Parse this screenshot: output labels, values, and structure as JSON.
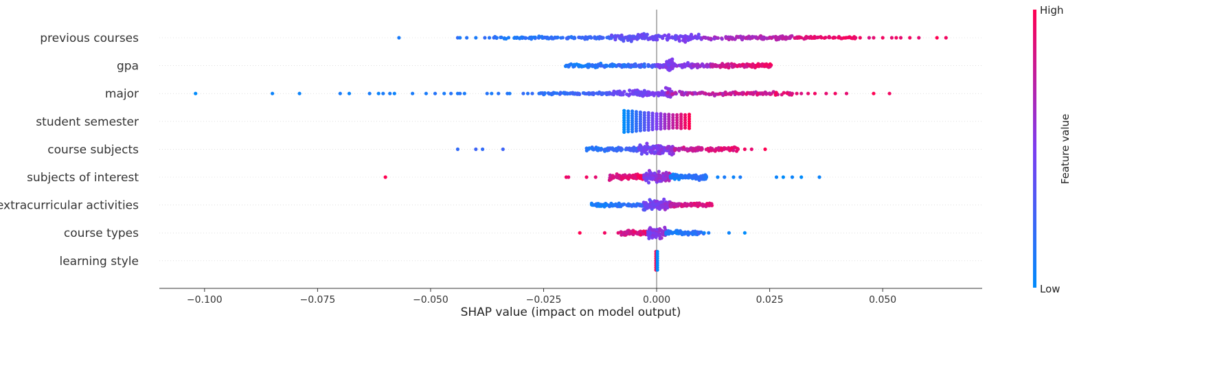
{
  "chart_data": {
    "type": "scatter",
    "subtype": "shap-beeswarm",
    "xlabel": "SHAP value (impact on model output)",
    "xlim": [
      -0.11,
      0.072
    ],
    "x_ticks": [
      -0.1,
      -0.075,
      -0.05,
      -0.025,
      0.0,
      0.025,
      0.05
    ],
    "x_tick_labels": [
      "−0.100",
      "−0.075",
      "−0.050",
      "−0.025",
      "0.000",
      "0.025",
      "0.050"
    ],
    "zero_line": 0.0,
    "colorbar": {
      "title": "Feature value",
      "high_label": "High",
      "low_label": "Low",
      "low_color": "#008bfb",
      "mid_color": "#7c3cf0",
      "high_color": "#ff0051"
    },
    "grid": false,
    "features": [
      {
        "name": "previous courses",
        "outliers": [
          [
            -0.057,
            0.1
          ],
          [
            -0.044,
            0.2
          ],
          [
            -0.0435,
            0.1
          ],
          [
            -0.042,
            0.15
          ],
          [
            -0.04,
            0.1
          ],
          [
            -0.038,
            0.2
          ],
          [
            -0.037,
            0.15
          ],
          [
            -0.036,
            0.2
          ],
          [
            0.044,
            0.9
          ],
          [
            0.045,
            0.95
          ],
          [
            0.047,
            0.85
          ],
          [
            0.048,
            0.9
          ],
          [
            0.05,
            0.95
          ],
          [
            0.052,
            0.9
          ],
          [
            0.053,
            0.95
          ],
          [
            0.054,
            0.9
          ],
          [
            0.056,
            0.95
          ],
          [
            0.058,
            0.9
          ],
          [
            0.062,
            1.0
          ],
          [
            0.064,
            0.95
          ]
        ],
        "clusters": [
          {
            "x_range": [
              -0.036,
              -0.01
            ],
            "count": 110,
            "spread": 0.25,
            "color_range": [
              0.05,
              0.3
            ]
          },
          {
            "x_range": [
              -0.01,
              0.01
            ],
            "count": 140,
            "spread": 0.6,
            "color_range": [
              0.3,
              0.55
            ]
          },
          {
            "x_range": [
              0.01,
              0.03
            ],
            "count": 110,
            "spread": 0.3,
            "color_range": [
              0.55,
              0.8
            ]
          },
          {
            "x_range": [
              0.03,
              0.044
            ],
            "count": 60,
            "spread": 0.2,
            "color_range": [
              0.8,
              1.0
            ]
          }
        ]
      },
      {
        "name": "gpa",
        "outliers": [],
        "clusters": [
          {
            "x_range": [
              -0.0205,
              0.0
            ],
            "count": 140,
            "spread": 0.3,
            "color_range": [
              0.0,
              0.35
            ]
          },
          {
            "x_range": [
              0.002,
              0.0035
            ],
            "count": 40,
            "spread": 0.9,
            "color_range": [
              0.45,
              0.55
            ]
          },
          {
            "x_range": [
              0.0,
              0.012
            ],
            "count": 100,
            "spread": 0.4,
            "color_range": [
              0.4,
              0.7
            ]
          },
          {
            "x_range": [
              0.012,
              0.0255
            ],
            "count": 110,
            "spread": 0.35,
            "color_range": [
              0.7,
              1.0
            ]
          }
        ]
      },
      {
        "name": "major",
        "outliers": [
          [
            -0.102,
            0.0
          ],
          [
            -0.085,
            0.05
          ],
          [
            -0.079,
            0.05
          ],
          [
            -0.07,
            0.1
          ],
          [
            -0.068,
            0.05
          ],
          [
            -0.0635,
            0.1
          ],
          [
            -0.0615,
            0.05
          ],
          [
            -0.0605,
            0.1
          ],
          [
            -0.059,
            0.1
          ],
          [
            -0.058,
            0.05
          ],
          [
            -0.054,
            0.1
          ],
          [
            -0.051,
            0.1
          ],
          [
            -0.049,
            0.15
          ],
          [
            -0.047,
            0.1
          ],
          [
            -0.0455,
            0.15
          ],
          [
            -0.044,
            0.1
          ],
          [
            -0.0435,
            0.15
          ],
          [
            -0.0425,
            0.1
          ],
          [
            -0.0375,
            0.15
          ],
          [
            -0.0365,
            0.1
          ],
          [
            -0.035,
            0.15
          ],
          [
            -0.033,
            0.15
          ],
          [
            -0.0325,
            0.1
          ],
          [
            -0.0295,
            0.2
          ],
          [
            -0.0285,
            0.15
          ],
          [
            -0.0275,
            0.2
          ],
          [
            -0.026,
            0.15
          ],
          [
            0.03,
            0.85
          ],
          [
            0.031,
            0.9
          ],
          [
            0.032,
            0.85
          ],
          [
            0.0335,
            0.9
          ],
          [
            0.035,
            0.95
          ],
          [
            0.0375,
            0.9
          ],
          [
            0.0395,
            0.95
          ],
          [
            0.042,
            0.9
          ],
          [
            0.048,
            1.0
          ],
          [
            0.0515,
            0.95
          ]
        ],
        "clusters": [
          {
            "x_range": [
              -0.026,
              -0.01
            ],
            "count": 80,
            "spread": 0.2,
            "color_range": [
              0.1,
              0.35
            ]
          },
          {
            "x_range": [
              -0.01,
              0.002
            ],
            "count": 110,
            "spread": 0.45,
            "color_range": [
              0.35,
              0.55
            ]
          },
          {
            "x_range": [
              0.002,
              0.0035
            ],
            "count": 30,
            "spread": 0.9,
            "color_range": [
              0.5,
              0.6
            ]
          },
          {
            "x_range": [
              0.002,
              0.03
            ],
            "count": 130,
            "spread": 0.3,
            "color_range": [
              0.55,
              1.0
            ]
          }
        ]
      },
      {
        "name": "student semester",
        "columns": [
          -0.0072,
          -0.0063,
          -0.0054,
          -0.0045,
          -0.0036,
          -0.0027,
          -0.0018,
          -0.0009,
          0.0,
          0.0009,
          0.0018,
          0.0027,
          0.0036,
          0.0045,
          0.0054,
          0.0063,
          0.0072
        ],
        "column_heights": [
          1.0,
          0.95,
          0.95,
          0.9,
          0.85,
          0.8,
          0.8,
          0.75,
          0.7,
          0.7,
          0.65,
          0.65,
          0.6,
          0.6,
          0.65,
          0.6,
          0.65
        ]
      },
      {
        "name": "course subjects",
        "outliers": [
          [
            -0.044,
            0.2
          ],
          [
            -0.04,
            0.25
          ],
          [
            -0.0385,
            0.2
          ],
          [
            -0.034,
            0.25
          ],
          [
            0.018,
            0.9
          ],
          [
            0.0195,
            0.95
          ],
          [
            0.021,
            0.9
          ],
          [
            0.024,
            1.0
          ]
        ],
        "clusters": [
          {
            "x_range": [
              -0.0155,
              -0.004
            ],
            "count": 90,
            "spread": 0.35,
            "color_range": [
              0.05,
              0.35
            ]
          },
          {
            "x_range": [
              -0.004,
              0.004
            ],
            "count": 110,
            "spread": 0.85,
            "color_range": [
              0.35,
              0.65
            ]
          },
          {
            "x_range": [
              0.004,
              0.018
            ],
            "count": 100,
            "spread": 0.35,
            "color_range": [
              0.65,
              1.0
            ]
          }
        ]
      },
      {
        "name": "subjects of interest",
        "outliers": [
          [
            -0.06,
            1.0
          ],
          [
            -0.02,
            0.95
          ],
          [
            -0.0195,
            0.9
          ],
          [
            -0.0155,
            0.95
          ],
          [
            -0.0135,
            0.9
          ],
          [
            0.011,
            0.1
          ],
          [
            0.0135,
            0.05
          ],
          [
            0.015,
            0.1
          ],
          [
            0.017,
            0.05
          ],
          [
            0.0185,
            0.1
          ],
          [
            0.0265,
            0.05
          ],
          [
            0.028,
            0.0
          ],
          [
            0.03,
            0.05
          ],
          [
            0.032,
            0.0
          ],
          [
            0.036,
            0.05
          ]
        ],
        "clusters": [
          {
            "x_range": [
              -0.0105,
              -0.003
            ],
            "count": 90,
            "spread": 0.45,
            "color_range": [
              0.75,
              1.0
            ]
          },
          {
            "x_range": [
              -0.003,
              0.003
            ],
            "count": 120,
            "spread": 0.9,
            "color_range": [
              0.4,
              0.75
            ]
          },
          {
            "x_range": [
              0.003,
              0.011
            ],
            "count": 90,
            "spread": 0.45,
            "color_range": [
              0.0,
              0.3
            ]
          }
        ]
      },
      {
        "name": "extracurricular activities",
        "outliers": [],
        "clusters": [
          {
            "x_range": [
              -0.0145,
              -0.003
            ],
            "count": 90,
            "spread": 0.3,
            "color_range": [
              0.0,
              0.3
            ]
          },
          {
            "x_range": [
              -0.003,
              0.003
            ],
            "count": 120,
            "spread": 0.85,
            "color_range": [
              0.3,
              0.7
            ]
          },
          {
            "x_range": [
              0.003,
              0.0125
            ],
            "count": 90,
            "spread": 0.35,
            "color_range": [
              0.7,
              1.0
            ]
          }
        ]
      },
      {
        "name": "course types",
        "outliers": [
          [
            -0.017,
            1.0
          ],
          [
            -0.0115,
            0.95
          ],
          [
            -0.0085,
            0.9
          ],
          [
            0.0105,
            0.05
          ],
          [
            0.0115,
            0.1
          ],
          [
            0.016,
            0.05
          ],
          [
            0.0195,
            0.0
          ]
        ],
        "clusters": [
          {
            "x_range": [
              -0.008,
              -0.002
            ],
            "count": 70,
            "spread": 0.4,
            "color_range": [
              0.7,
              1.0
            ]
          },
          {
            "x_range": [
              -0.002,
              0.002
            ],
            "count": 90,
            "spread": 0.9,
            "color_range": [
              0.4,
              0.7
            ]
          },
          {
            "x_range": [
              0.002,
              0.0105
            ],
            "count": 70,
            "spread": 0.35,
            "color_range": [
              0.0,
              0.3
            ]
          }
        ]
      },
      {
        "name": "learning style",
        "columns": [
          -0.00015,
          0.00015
        ],
        "column_heights": [
          0.85,
          0.85
        ],
        "column_colors": [
          1.0,
          0.0
        ]
      }
    ]
  }
}
